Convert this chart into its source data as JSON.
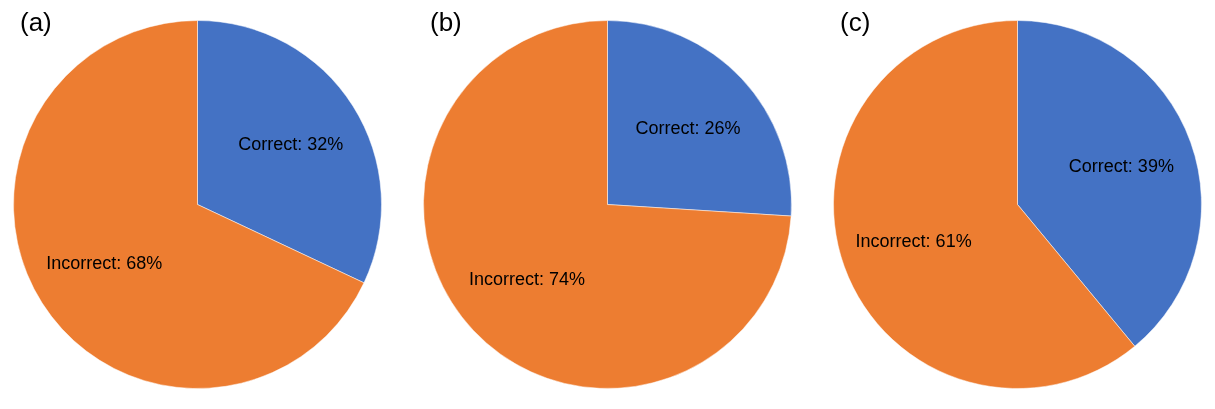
{
  "chart_data": [
    {
      "type": "pie",
      "title": "(a)",
      "categories": [
        "Correct: 32%",
        "Incorrect: 68%"
      ],
      "values": [
        32,
        68
      ],
      "colors": [
        "#4472c4",
        "#ed7d31"
      ]
    },
    {
      "type": "pie",
      "title": "(b)",
      "categories": [
        "Correct: 26%",
        "Incorrect: 74%"
      ],
      "values": [
        26,
        74
      ],
      "colors": [
        "#4472c4",
        "#ed7d31"
      ]
    },
    {
      "type": "pie",
      "title": "(c)",
      "categories": [
        "Correct: 39%",
        "Incorrect: 61%"
      ],
      "values": [
        39,
        61
      ],
      "colors": [
        "#4472c4",
        "#ed7d31"
      ]
    }
  ]
}
